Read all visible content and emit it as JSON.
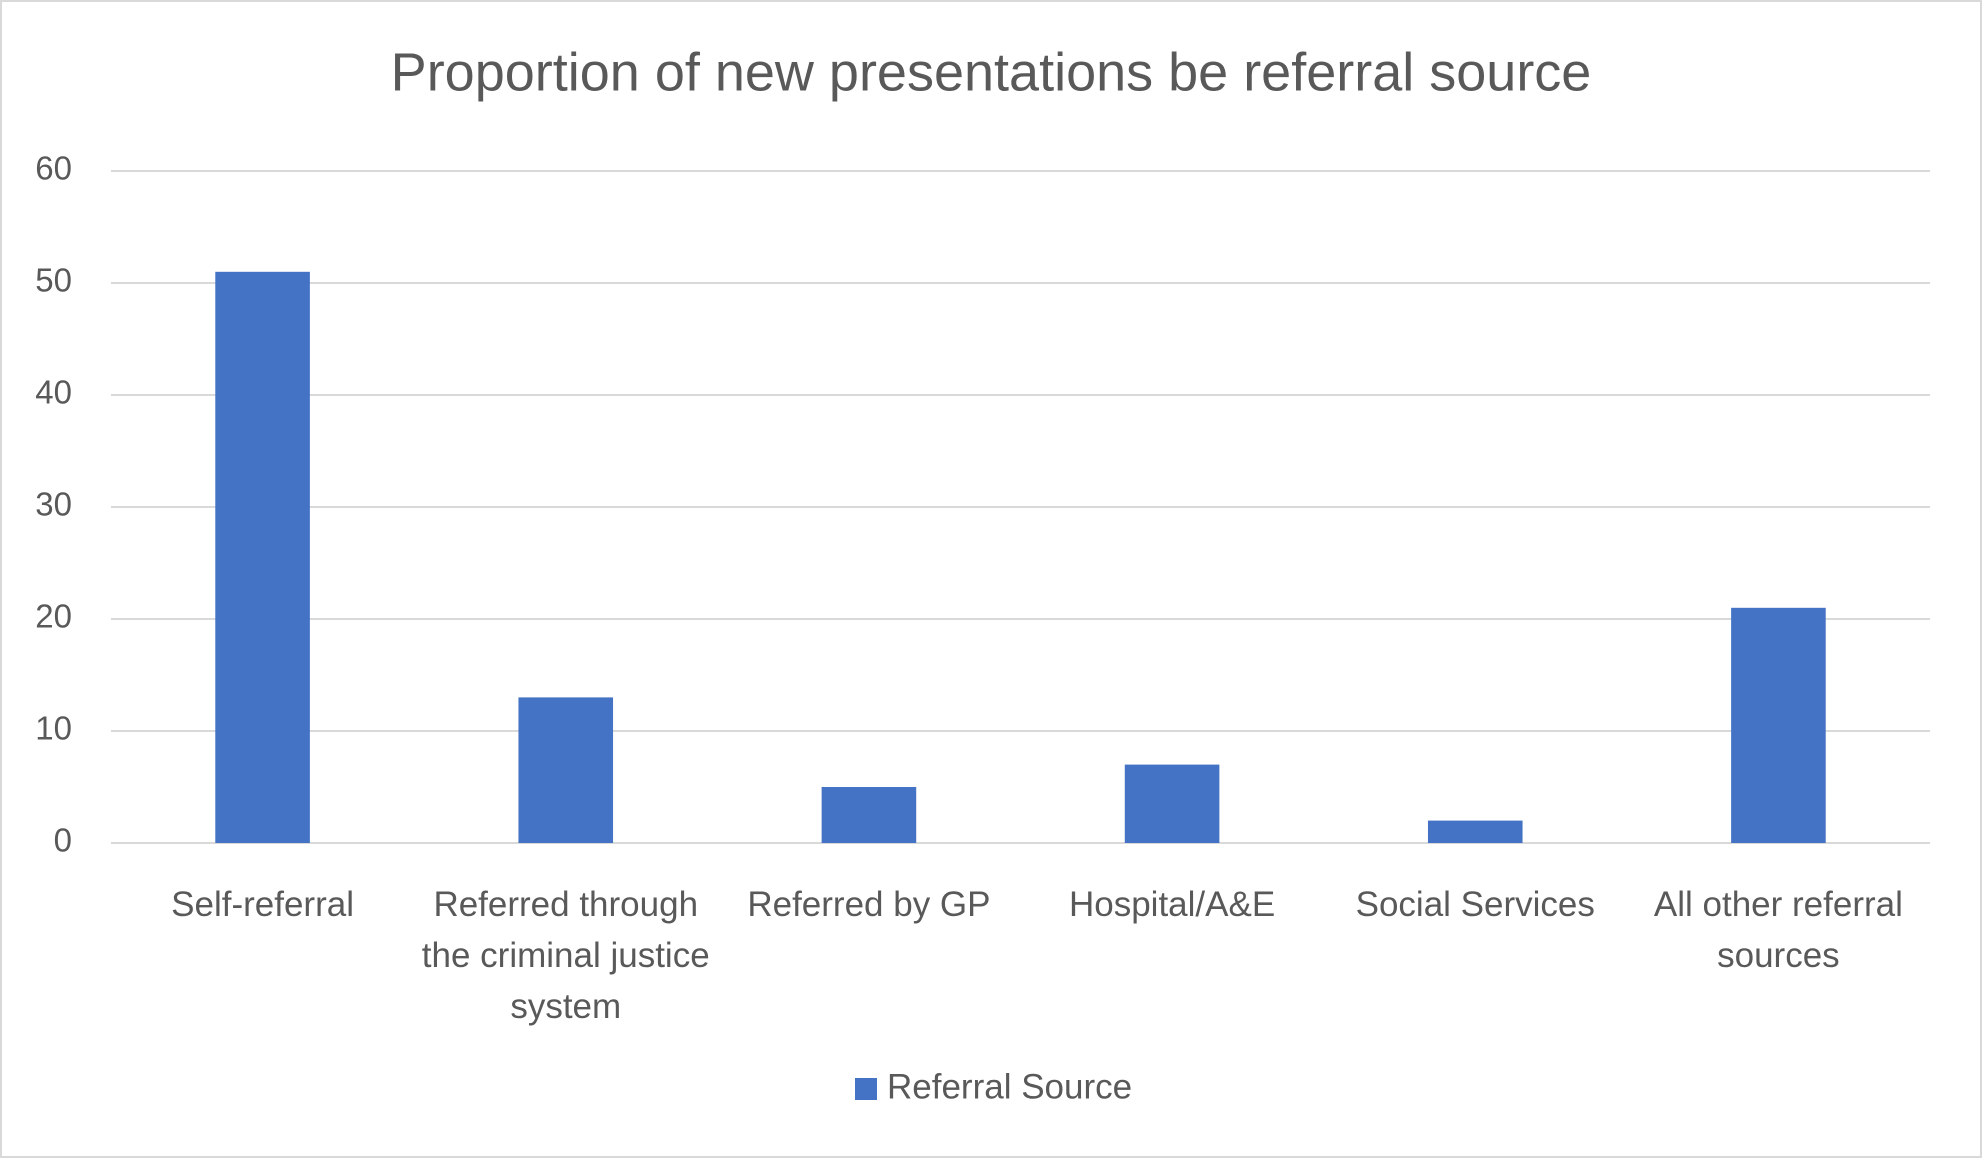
{
  "chart_data": {
    "type": "bar",
    "title": "Proportion of new presentations be referral source",
    "categories": [
      "Self-referral",
      "Referred through the criminal justice system",
      "Referred by GP",
      "Hospital/A&E",
      "Social Services",
      "All other referral sources"
    ],
    "series": [
      {
        "name": "Referral Source",
        "color": "#4472c4",
        "values": [
          51,
          13,
          5,
          7,
          2,
          21
        ]
      }
    ],
    "ylim": [
      0,
      60
    ],
    "yticks": [
      0,
      10,
      20,
      30,
      40,
      50,
      60
    ],
    "grid": true,
    "legend": "bottom"
  }
}
